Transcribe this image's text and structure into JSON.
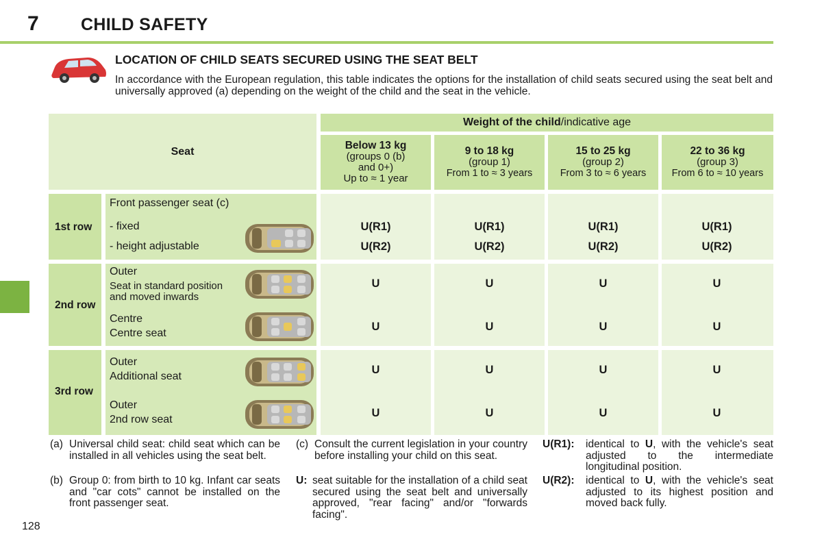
{
  "header": {
    "chapter_number": "7",
    "chapter_title": "CHILD SAFETY"
  },
  "section": {
    "title": "LOCATION OF CHILD SEATS SECURED USING THE SEAT BELT",
    "intro": "In accordance with the European regulation, this table indicates the options for the installation of child seats secured using the seat belt and universally approved (a) depending on the weight of the child and the seat in the vehicle."
  },
  "table": {
    "seat_header": "Seat",
    "weight_header_bold": "Weight of the child",
    "weight_header_rest": "/indicative age",
    "columns": [
      {
        "l1": "Below 13 kg",
        "l2": "(groups 0 (b)",
        "l3": "and 0+)",
        "l4": "Up to ≈ 1 year"
      },
      {
        "l1": "9 to 18 kg",
        "l2": "(group 1)",
        "l3": "From 1 to ≈ 3 years"
      },
      {
        "l1": "15 to 25 kg",
        "l2": "(group 2)",
        "l3": "From 3 to ≈ 6 years"
      },
      {
        "l1": "22 to 36 kg",
        "l2": "(group 3)",
        "l3": "From 6 to ≈ 10 years"
      }
    ],
    "row1": {
      "label": "1st row",
      "title": "Front passenger seat (c)",
      "sub1": "- fixed",
      "sub2": "- height adjustable",
      "values1": [
        "U(R1)",
        "U(R1)",
        "U(R1)",
        "U(R1)"
      ],
      "values2": [
        "U(R2)",
        "U(R2)",
        "U(R2)",
        "U(R2)"
      ]
    },
    "row2": {
      "label": "2nd row",
      "a_title": "Outer",
      "a_l2": "Seat in standard position",
      "a_l3": "and moved inwards",
      "b_title": "Centre",
      "b_l2": "Centre seat",
      "values_a": [
        "U",
        "U",
        "U",
        "U"
      ],
      "values_b": [
        "U",
        "U",
        "U",
        "U"
      ]
    },
    "row3": {
      "label": "3rd row",
      "a_title": "Outer",
      "a_l2": "Additional seat",
      "b_title": "Outer",
      "b_l2": "2nd row seat",
      "values_a": [
        "U",
        "U",
        "U",
        "U"
      ],
      "values_b": [
        "U",
        "U",
        "U",
        "U"
      ]
    }
  },
  "footnotes": {
    "a_key": "(a)",
    "a_text": "Universal child seat: child seat which can be installed in all vehicles using the seat belt.",
    "b_key": "(b)",
    "b_text": "Group 0: from birth to 10 kg. Infant car seats and \"car cots\" cannot be installed on the front passenger seat.",
    "c_key": "(c)",
    "c_text": "Consult the current legislation in your country before installing your child on this seat.",
    "u_key": "U:",
    "u_text": "seat suitable for the installation of a child seat secured using the seat belt and universally approved, \"rear facing\" and/or \"forwards facing\".",
    "r1_key": "U(R1):",
    "r1_pre": "identical to ",
    "r1_bold": "U",
    "r1_post": ", with the vehicle's seat adjusted to the intermediate longitudinal position.",
    "r2_key": "U(R2):",
    "r2_pre": "identical to ",
    "r2_bold": "U",
    "r2_post": ", with the vehicle's seat adjusted to its highest position and moved back fully."
  },
  "page_number": "128",
  "colors": {
    "accent_green": "#7cb342",
    "rule_green": "#a8d06a",
    "table_header": "#cbe3a4",
    "table_cell": "#ebf4dd",
    "car_red": "#d93636"
  }
}
